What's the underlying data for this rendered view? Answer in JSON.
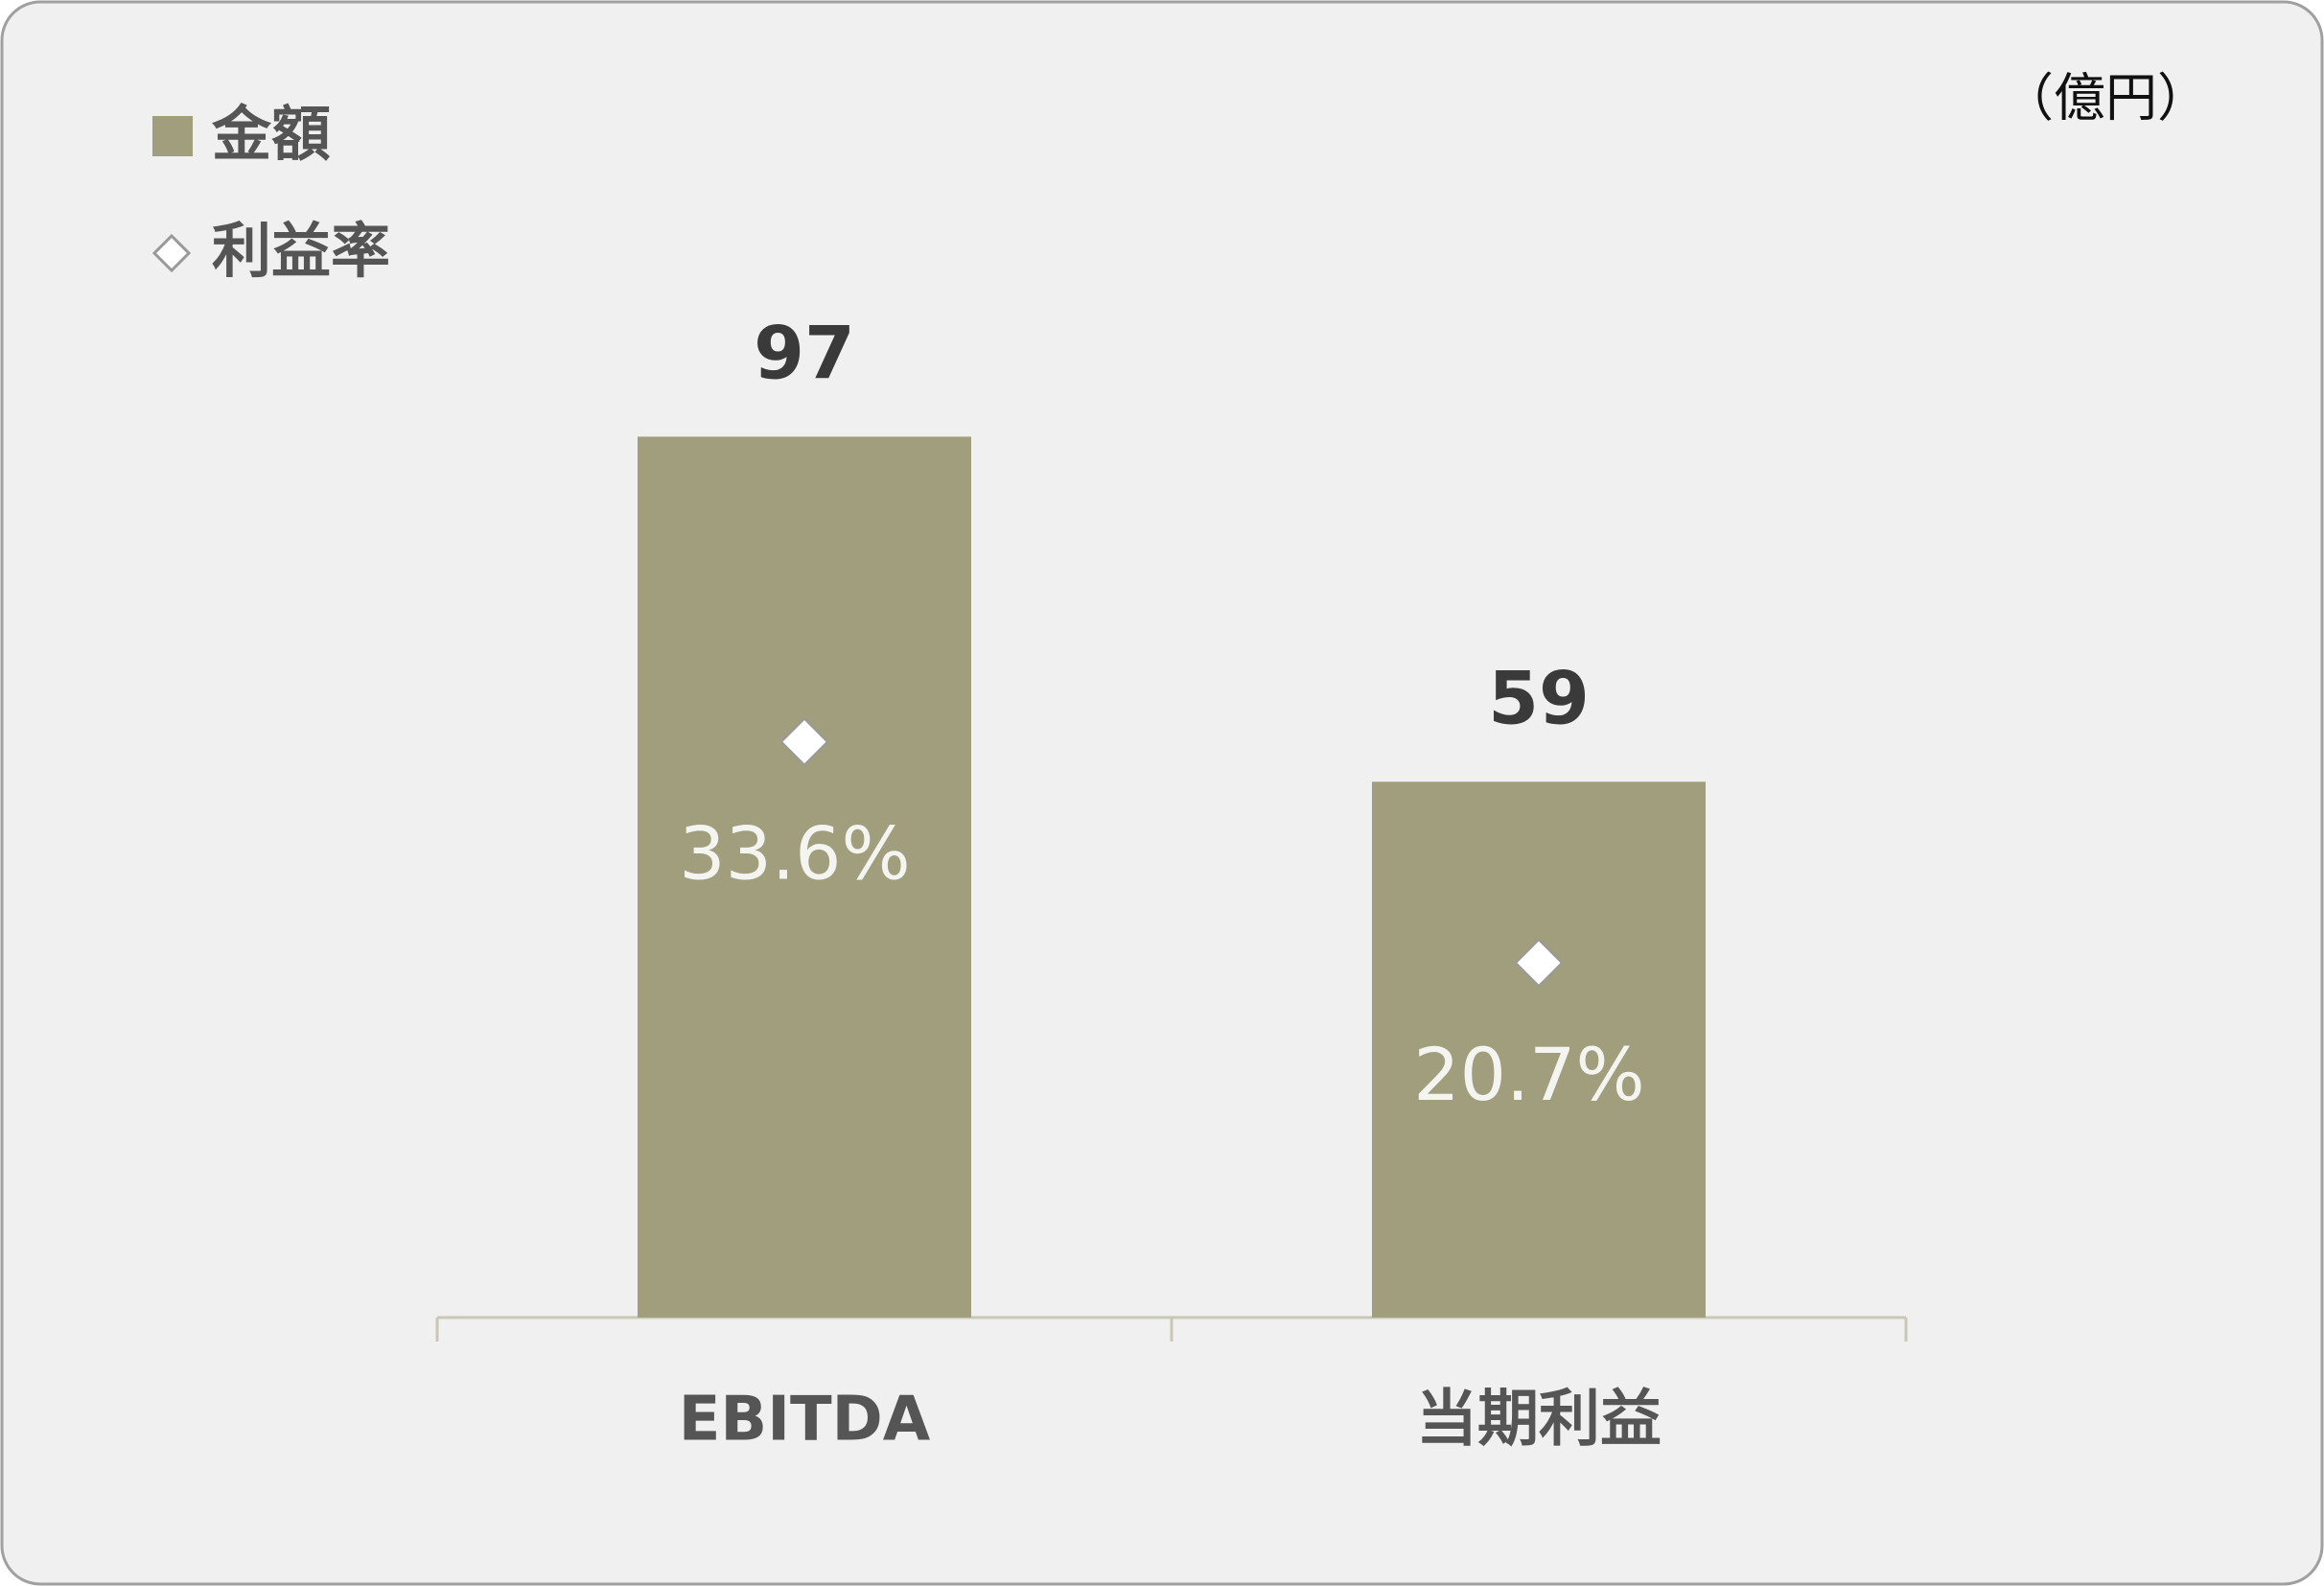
{
  "chart_data": {
    "type": "bar",
    "unit_label": "（億円）",
    "categories": [
      "EBITDA",
      "当期利益"
    ],
    "series": [
      {
        "name": "金額",
        "color": "#a19e7d",
        "values": [
          97,
          59
        ]
      },
      {
        "name": "利益率",
        "type": "scatter",
        "axis": "y2",
        "color": "#ffffff",
        "values": [
          33.6,
          20.7
        ],
        "value_labels": [
          "33.6%",
          "20.7%"
        ]
      }
    ],
    "ylim": [
      0,
      100
    ],
    "y2lim": [
      0,
      53
    ],
    "legend": "top-left"
  }
}
